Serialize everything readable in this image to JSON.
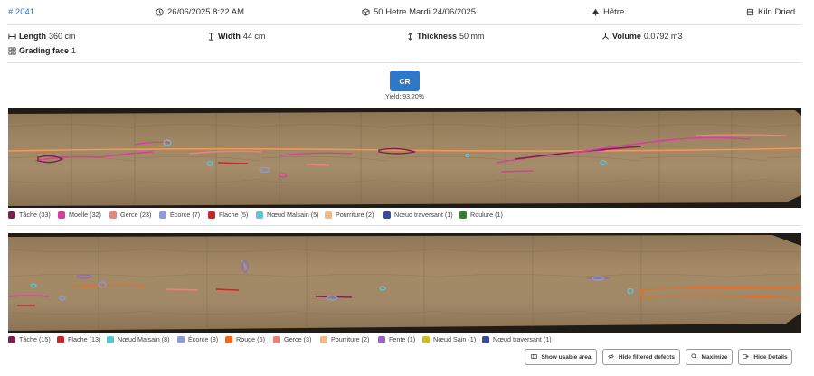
{
  "header": {
    "id": "# 2041",
    "datetime": "26/06/2025 8:22 AM",
    "batch": "50 Hetre Mardi 24/06/2025",
    "species": "Hêtre",
    "drying": "Kiln Dried"
  },
  "dimensions": {
    "length_label": "Length",
    "length_value": "360 cm",
    "width_label": "Width",
    "width_value": "44 cm",
    "thickness_label": "Thickness",
    "thickness_value": "50 mm",
    "volume_label": "Volume",
    "volume_value": "0.0792 m3",
    "grading_label": "Grading face",
    "grading_value": "1"
  },
  "grade": {
    "label": "CR",
    "yield": "Yield: 93.20%"
  },
  "face1": {
    "legend": [
      {
        "label": "Tâche (33)",
        "color": "#7a1f4f"
      },
      {
        "label": "Moelle (32)",
        "color": "#d6409a"
      },
      {
        "label": "Gerce (23)",
        "color": "#e8847c"
      },
      {
        "label": "Écorce (7)",
        "color": "#8f9bd1"
      },
      {
        "label": "Flache (5)",
        "color": "#c62828"
      },
      {
        "label": "Nœud Malsain (5)",
        "color": "#5cc7d2"
      },
      {
        "label": "Pourriture (2)",
        "color": "#f0b98a"
      },
      {
        "label": "Nœud traversant (1)",
        "color": "#3c4a9e"
      },
      {
        "label": "Roulure (1)",
        "color": "#2e7d32"
      }
    ]
  },
  "face2": {
    "legend": [
      {
        "label": "Tâche (15)",
        "color": "#7a1f4f"
      },
      {
        "label": "Flache (13)",
        "color": "#c62828"
      },
      {
        "label": "Nœud Malsain (8)",
        "color": "#5cc7d2"
      },
      {
        "label": "Écorce (8)",
        "color": "#8f9bd1"
      },
      {
        "label": "Rouge (6)",
        "color": "#f26b1d"
      },
      {
        "label": "Gerce (3)",
        "color": "#e8847c"
      },
      {
        "label": "Pourriture (2)",
        "color": "#f0b98a"
      },
      {
        "label": "Fente (1)",
        "color": "#9467bd"
      },
      {
        "label": "Nœud Sain (1)",
        "color": "#c8c02a"
      },
      {
        "label": "Nœud traversant (1)",
        "color": "#3c4a9e"
      }
    ]
  },
  "actions": {
    "usable_area": "Show usable area",
    "filtered_defects": "Hide filtered defects",
    "maximize": "Maximize",
    "hide_details": "Hide Details"
  }
}
